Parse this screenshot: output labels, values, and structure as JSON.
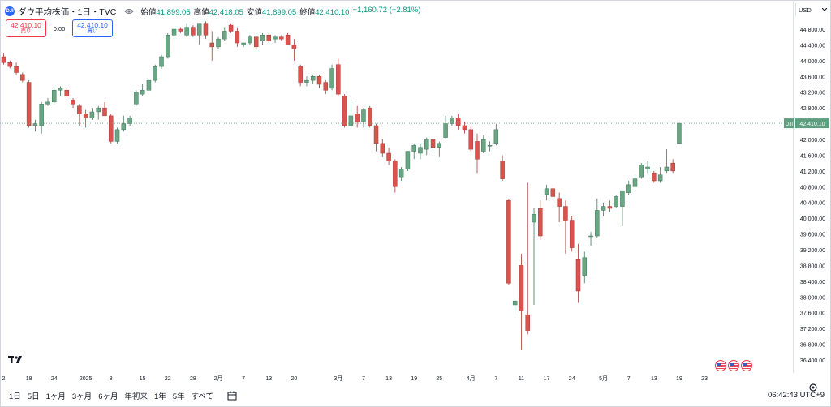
{
  "header": {
    "symbol_badge": "DJI",
    "title": "ダウ平均株価・1日・TVC",
    "ohlc": [
      {
        "label": "始値",
        "value": "41,899.05"
      },
      {
        "label": "高値",
        "value": "42,418.05"
      },
      {
        "label": "安値",
        "value": "41,899.05"
      },
      {
        "label": "終値",
        "value": "42,410.10"
      }
    ],
    "change": "+1,160.72 (+2.81%)"
  },
  "trade": {
    "sell_price": "42,410.10",
    "sell_label": "売り",
    "spread": "0.00",
    "buy_price": "42,410.10",
    "buy_label": "買い"
  },
  "price_axis": {
    "currency": "USD",
    "current_tag": "DJI",
    "current_price": "42,410.10"
  },
  "bottom": {
    "timeframes": [
      "1日",
      "5日",
      "1ヶ月",
      "3ヶ月",
      "6ヶ月",
      "年初来",
      "1年",
      "5年",
      "すべて"
    ],
    "clock": "06:42:43 UTC+9"
  },
  "colors": {
    "up": "#6aa584",
    "down": "#d9534f",
    "accent": "#2962ff",
    "sell": "#f23645"
  },
  "chart_data": {
    "type": "candlestick",
    "ylim": [
      36200,
      45000
    ],
    "yticks": [
      44800,
      44400,
      44000,
      43600,
      43200,
      42800,
      42400,
      42000,
      41600,
      41200,
      40800,
      40400,
      40000,
      39600,
      39200,
      38800,
      38400,
      38000,
      37600,
      37200,
      36800,
      36400
    ],
    "ytick_labels": [
      "44,800.00",
      "44,400.00",
      "44,000.00",
      "43,600.00",
      "43,200.00",
      "42,800.00",
      "42,400.00",
      "42,000.00",
      "41,600.00",
      "41,200.00",
      "40,800.00",
      "40,400.00",
      "40,000.00",
      "39,600.00",
      "39,200.00",
      "38,800.00",
      "38,400.00",
      "38,000.00",
      "37,600.00",
      "37,200.00",
      "36,800.00",
      "36,400.00"
    ],
    "xticks": [
      {
        "label": "2",
        "bar": 0
      },
      {
        "label": "18",
        "bar": 4
      },
      {
        "label": "24",
        "bar": 8
      },
      {
        "label": "2025",
        "bar": 13
      },
      {
        "label": "8",
        "bar": 17
      },
      {
        "label": "15",
        "bar": 22
      },
      {
        "label": "22",
        "bar": 26
      },
      {
        "label": "28",
        "bar": 30
      },
      {
        "label": "2月",
        "bar": 34
      },
      {
        "label": "7",
        "bar": 38
      },
      {
        "label": "13",
        "bar": 42
      },
      {
        "label": "20",
        "bar": 46
      },
      {
        "label": "3月",
        "bar": 53
      },
      {
        "label": "7",
        "bar": 57
      },
      {
        "label": "13",
        "bar": 61
      },
      {
        "label": "19",
        "bar": 65
      },
      {
        "label": "25",
        "bar": 69
      },
      {
        "label": "4月",
        "bar": 74
      },
      {
        "label": "7",
        "bar": 78
      },
      {
        "label": "11",
        "bar": 82
      },
      {
        "label": "17",
        "bar": 86
      },
      {
        "label": "24",
        "bar": 90
      },
      {
        "label": "5月",
        "bar": 95
      },
      {
        "label": "7",
        "bar": 99
      },
      {
        "label": "13",
        "bar": 103
      },
      {
        "label": "19",
        "bar": 107
      },
      {
        "label": "23",
        "bar": 111
      }
    ],
    "candles": [
      [
        44100,
        44200,
        43900,
        43950
      ],
      [
        43950,
        44000,
        43800,
        43850
      ],
      [
        43850,
        43950,
        43650,
        43700
      ],
      [
        43650,
        43700,
        43450,
        43500
      ],
      [
        43450,
        43500,
        42300,
        42350
      ],
      [
        42350,
        42500,
        42200,
        42400
      ],
      [
        42350,
        42950,
        42150,
        42900
      ],
      [
        42900,
        43050,
        42850,
        42950
      ],
      [
        42950,
        43300,
        42900,
        43250
      ],
      [
        43250,
        43350,
        43100,
        43300
      ],
      [
        43250,
        43300,
        43050,
        43100
      ],
      [
        43000,
        43050,
        42800,
        42900
      ],
      [
        42850,
        42900,
        42350,
        42650
      ],
      [
        42650,
        42750,
        42300,
        42550
      ],
      [
        42550,
        42800,
        42500,
        42700
      ],
      [
        42700,
        42850,
        42500,
        42800
      ],
      [
        42800,
        42950,
        42600,
        42600
      ],
      [
        42600,
        42650,
        41900,
        41950
      ],
      [
        41950,
        42300,
        41900,
        42250
      ],
      [
        42250,
        42600,
        42200,
        42400
      ],
      [
        42400,
        42600,
        42350,
        42550
      ],
      [
        42900,
        43250,
        42850,
        43200
      ],
      [
        43150,
        43400,
        43100,
        43250
      ],
      [
        43250,
        43550,
        43200,
        43500
      ],
      [
        43500,
        43900,
        43450,
        43850
      ],
      [
        43850,
        44150,
        43800,
        44100
      ],
      [
        44100,
        44700,
        44050,
        44650
      ],
      [
        44650,
        44850,
        44550,
        44800
      ],
      [
        44800,
        44850,
        44700,
        44750
      ],
      [
        44650,
        44950,
        44600,
        44850
      ],
      [
        44850,
        44900,
        44600,
        44650
      ],
      [
        44650,
        44950,
        44400,
        44950
      ],
      [
        44950,
        45000,
        44550,
        44650
      ],
      [
        44450,
        44750,
        44000,
        44350
      ],
      [
        44350,
        44600,
        44300,
        44550
      ],
      [
        44550,
        44850,
        44500,
        44750
      ],
      [
        44900,
        44950,
        44700,
        44750
      ],
      [
        44750,
        44850,
        44350,
        44450
      ],
      [
        44400,
        44450,
        44350,
        44450
      ],
      [
        44450,
        44650,
        44400,
        44600
      ],
      [
        44600,
        44650,
        44300,
        44350
      ],
      [
        44500,
        44700,
        44400,
        44650
      ],
      [
        44650,
        44700,
        44450,
        44500
      ],
      [
        44550,
        44650,
        44450,
        44600
      ],
      [
        44600,
        44650,
        44500,
        44550
      ],
      [
        44650,
        44700,
        44400,
        44400
      ],
      [
        44400,
        44550,
        44000,
        44300
      ],
      [
        43850,
        43900,
        43350,
        43450
      ],
      [
        43450,
        43600,
        43350,
        43500
      ],
      [
        43500,
        43650,
        43400,
        43600
      ],
      [
        43600,
        43650,
        43300,
        43400
      ],
      [
        43450,
        43500,
        43150,
        43250
      ],
      [
        43300,
        43900,
        43250,
        43800
      ],
      [
        43900,
        44050,
        43100,
        43150
      ],
      [
        43100,
        43150,
        42300,
        42350
      ],
      [
        42350,
        42950,
        42300,
        42600
      ],
      [
        42650,
        42850,
        42300,
        42450
      ],
      [
        42450,
        42800,
        42300,
        42750
      ],
      [
        42800,
        42850,
        42300,
        42350
      ],
      [
        42350,
        42400,
        41700,
        41900
      ],
      [
        41900,
        42000,
        41550,
        41650
      ],
      [
        41650,
        41800,
        41350,
        41450
      ],
      [
        41450,
        41500,
        40650,
        40800
      ],
      [
        41050,
        41300,
        40950,
        41250
      ],
      [
        41250,
        41700,
        41200,
        41700
      ],
      [
        41700,
        41900,
        41500,
        41850
      ],
      [
        41650,
        41900,
        41500,
        41800
      ],
      [
        41750,
        42050,
        41600,
        42000
      ],
      [
        42000,
        42050,
        41700,
        41800
      ],
      [
        41800,
        41950,
        41550,
        41900
      ],
      [
        42050,
        42600,
        42000,
        42400
      ],
      [
        42400,
        42600,
        42350,
        42550
      ],
      [
        42550,
        42650,
        42250,
        42350
      ],
      [
        42350,
        42450,
        42150,
        42250
      ],
      [
        42250,
        42350,
        41700,
        41750
      ],
      [
        41950,
        42150,
        41150,
        41500
      ],
      [
        41700,
        42100,
        41650,
        42000
      ],
      [
        41850,
        41950,
        41700,
        41850
      ],
      [
        41900,
        42400,
        41850,
        42250
      ],
      [
        41450,
        41600,
        40950,
        41000
      ],
      [
        40450,
        40500,
        38300,
        38350
      ],
      [
        37800,
        37850,
        37600,
        37900
      ],
      [
        38800,
        39100,
        36650,
        37650
      ],
      [
        37550,
        40900,
        37050,
        37150
      ],
      [
        39900,
        40250,
        37800,
        40100
      ],
      [
        40250,
        40450,
        39450,
        39550
      ],
      [
        40600,
        40850,
        40450,
        40750
      ],
      [
        40750,
        40800,
        40500,
        40550
      ],
      [
        40500,
        40650,
        39900,
        40300
      ],
      [
        40300,
        40450,
        39100,
        39950
      ],
      [
        39950,
        40050,
        39150,
        39250
      ],
      [
        38950,
        39350,
        37850,
        38150
      ],
      [
        38550,
        39150,
        38350,
        39000
      ],
      [
        39550,
        39650,
        39300,
        39550
      ],
      [
        39550,
        40500,
        39500,
        40200
      ],
      [
        40200,
        40400,
        40050,
        40300
      ],
      [
        40300,
        40450,
        40150,
        40250
      ],
      [
        40300,
        40600,
        40250,
        40550
      ],
      [
        40300,
        40650,
        39800,
        40700
      ],
      [
        40650,
        40950,
        40600,
        40850
      ],
      [
        40800,
        41100,
        40750,
        41000
      ],
      [
        41050,
        41400,
        41000,
        41350
      ],
      [
        41250,
        41450,
        41150,
        41300
      ],
      [
        41150,
        41200,
        40900,
        40950
      ],
      [
        40950,
        41300,
        40900,
        41100
      ],
      [
        41200,
        41750,
        41150,
        41300
      ],
      [
        41400,
        41500,
        41150,
        41200
      ],
      [
        41900,
        42420,
        41900,
        42410
      ]
    ]
  }
}
